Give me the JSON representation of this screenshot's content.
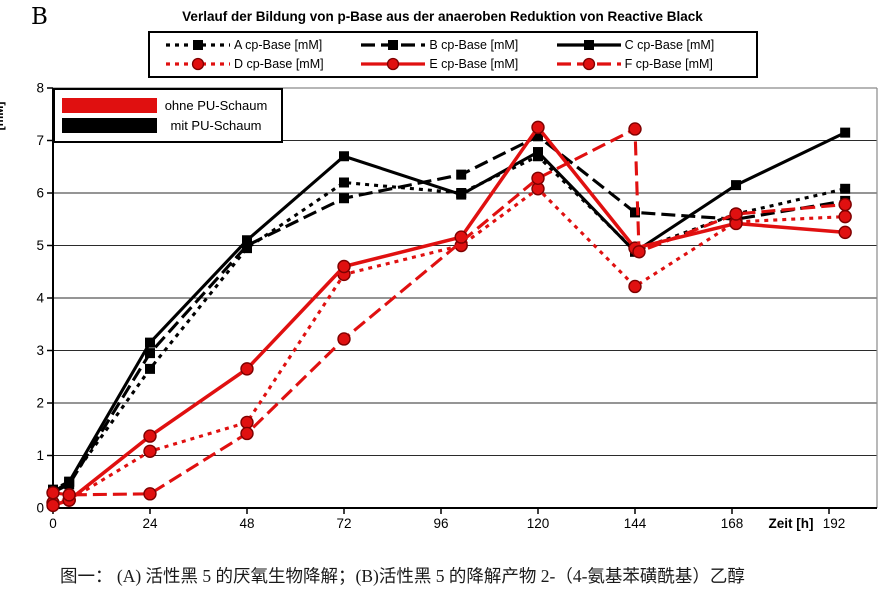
{
  "page": {
    "panel_label": "B",
    "caption": "图一： (A) 活性黑 5 的厌氧生物降解；(B)活性黑 5 的降解产物 2-（4-氨基苯磺酰基）乙醇"
  },
  "chart_data": {
    "type": "line",
    "title": "Verlauf der Bildung von p-Base aus der anaeroben Reduktion von Reactive Black",
    "xlabel": "Zeit [h]",
    "ylabel": "[mM]",
    "xlim": [
      0,
      204
    ],
    "ylim": [
      0,
      8
    ],
    "x_ticks": [
      0,
      24,
      48,
      72,
      96,
      120,
      144,
      168,
      192
    ],
    "y_ticks": [
      0,
      1,
      2,
      3,
      4,
      5,
      6,
      7,
      8
    ],
    "grid": "horizontal",
    "legend_position": "top",
    "colors": {
      "black_series": "#000000",
      "red_series": "#e01010",
      "grid": "#2b2b2b",
      "border": "#8a8a8a"
    },
    "inner_legend": [
      {
        "label": "ohne PU-Schaum",
        "color": "#e01010"
      },
      {
        "label": "mit PU-Schaum",
        "color": "#000000"
      }
    ],
    "series": [
      {
        "name": "A cp-Base [mM]",
        "color": "#000000",
        "line_style": "dotted",
        "marker": "square",
        "x": [
          0,
          4,
          24,
          48,
          72,
          101,
          120,
          144,
          169,
          196
        ],
        "y": [
          0.35,
          0.5,
          2.65,
          4.95,
          6.2,
          6.0,
          6.7,
          4.9,
          5.6,
          6.08
        ]
      },
      {
        "name": "B cp-Base [mM]",
        "color": "#000000",
        "line_style": "dashed",
        "marker": "square",
        "x": [
          0,
          4,
          24,
          48,
          72,
          101,
          120,
          144,
          169,
          196
        ],
        "y": [
          0.3,
          0.45,
          2.95,
          5.0,
          5.9,
          6.35,
          7.08,
          5.63,
          5.5,
          5.85
        ]
      },
      {
        "name": "C cp-Base [mM]",
        "color": "#000000",
        "line_style": "solid",
        "marker": "square",
        "x": [
          0,
          4,
          24,
          48,
          72,
          101,
          120,
          144,
          169,
          196
        ],
        "y": [
          0.3,
          0.5,
          3.15,
          5.1,
          6.7,
          5.97,
          6.78,
          4.88,
          6.15,
          7.15
        ]
      },
      {
        "name": "D cp-Base [mM]",
        "color": "#e01010",
        "line_style": "dotted",
        "marker": "circle",
        "x": [
          0,
          4,
          24,
          48,
          72,
          101,
          120,
          144,
          169,
          196
        ],
        "y": [
          0.1,
          0.15,
          1.08,
          1.63,
          4.45,
          5.0,
          6.08,
          4.22,
          5.45,
          5.55
        ]
      },
      {
        "name": "E cp-Base [mM]",
        "color": "#e01010",
        "line_style": "solid",
        "marker": "circle",
        "x": [
          0,
          4,
          24,
          48,
          72,
          101,
          120,
          144,
          169,
          196
        ],
        "y": [
          0.05,
          0.15,
          1.37,
          2.65,
          4.6,
          5.16,
          7.25,
          4.95,
          5.42,
          5.25
        ]
      },
      {
        "name": "F cp-Base [mM]",
        "color": "#e01010",
        "line_style": "dashed",
        "marker": "circle",
        "x": [
          0,
          4,
          24,
          48,
          72,
          120,
          144,
          145,
          169,
          196
        ],
        "y": [
          0.29,
          0.25,
          0.27,
          1.42,
          3.22,
          6.28,
          7.22,
          4.88,
          5.6,
          5.78
        ]
      }
    ]
  }
}
